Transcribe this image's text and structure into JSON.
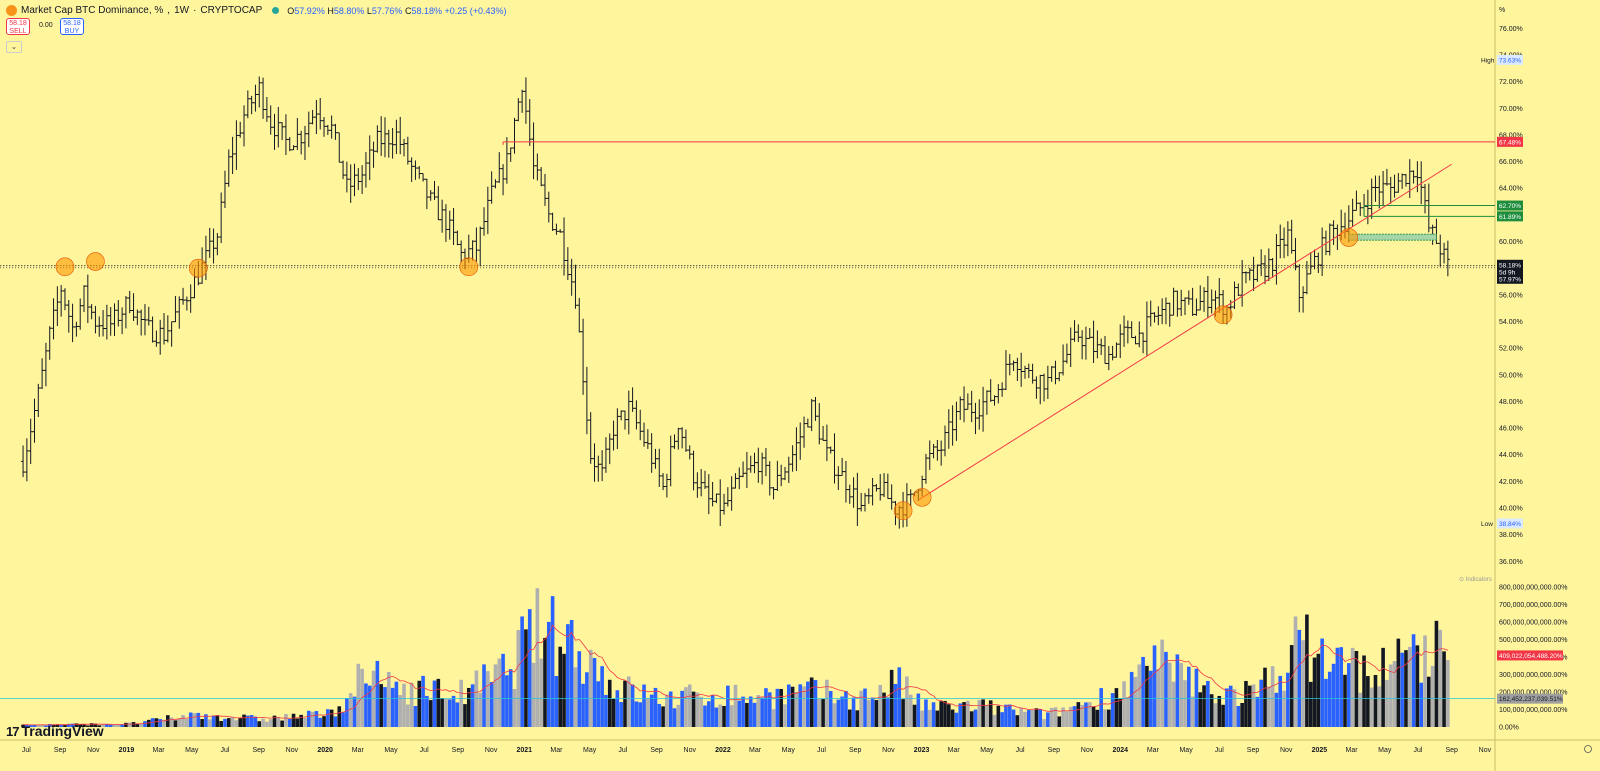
{
  "header": {
    "title": "Market Cap BTC Dominance, %",
    "interval": "1W",
    "exchange": "CRYPTOCAP",
    "ohlc": {
      "o_label": "O",
      "o_value": "57.92%",
      "h_label": "H",
      "h_value": "58.80%",
      "l_label": "L",
      "l_value": "57.76%",
      "c_label": "C",
      "c_value": "58.18%",
      "change": "+0.25 (+0.43%)"
    }
  },
  "trade": {
    "sell_price": "58.18",
    "sell_label": "SELL",
    "spread": "0.00",
    "buy_price": "58.18",
    "buy_label": "BUY"
  },
  "collapse_icon": "chevron-down-icon",
  "logo": {
    "text": "TradingView",
    "mark": "17"
  },
  "price_axis": {
    "unit": "%",
    "labels": [
      "76.00%",
      "74.00%",
      "72.00%",
      "70.00%",
      "68.00%",
      "66.00%",
      "64.00%",
      "62.00%",
      "60.00%",
      "58.00%",
      "56.00%",
      "54.00%",
      "52.00%",
      "50.00%",
      "48.00%",
      "46.00%",
      "44.00%",
      "42.00%",
      "40.00%",
      "38.00%",
      "36.00%"
    ]
  },
  "volume_axis": {
    "labels": [
      "800,000,000,000.00%",
      "700,000,000,000.00%",
      "600,000,000,000.00%",
      "500,000,000,000.00%",
      "400,000,000,000.00%",
      "300,000,000,000.00%",
      "200,000,000,000.00%",
      "100,000,000,000.00%",
      "0.00%"
    ]
  },
  "time_axis": {
    "labels": [
      "Jul",
      "Sep",
      "Nov",
      "2019",
      "Mar",
      "May",
      "Jul",
      "Sep",
      "Nov",
      "2020",
      "Mar",
      "May",
      "Jul",
      "Sep",
      "Nov",
      "2021",
      "Mar",
      "May",
      "Jul",
      "Sep",
      "Nov",
      "2022",
      "Mar",
      "May",
      "Jul",
      "Sep",
      "Nov",
      "2023",
      "Mar",
      "May",
      "Jul",
      "Sep",
      "Nov",
      "2024",
      "Mar",
      "May",
      "Jul",
      "Sep",
      "Nov",
      "2025",
      "Mar",
      "May",
      "Jul",
      "Sep",
      "Nov"
    ]
  },
  "markers": {
    "high_label": "High",
    "high_value": "73.63%",
    "low_label": "Low",
    "low_value": "38.84%",
    "resistance_value": "67.48%",
    "fib1_value": "62.70%",
    "fib2_value": "61.89%",
    "last_price": "58.18%",
    "countdown": "5d 9h",
    "prev_close": "57.97%",
    "volume_last": "409,022,054,488.20%",
    "volume_ma": "162,452,237,039.51%",
    "watermark": "Indicators"
  },
  "colors": {
    "background": "#fff59d",
    "bar": "#131722",
    "resistance": "#f23645",
    "trendline": "#f23645",
    "support": "#131722",
    "fib": "#1e8e3e",
    "circle": "#ff9800",
    "vol_blue": "#2962ff",
    "vol_black": "#131722",
    "vol_gray": "#b0b0b0",
    "vol_ma": "#f23645",
    "vol_hline": "#26c6da"
  },
  "chart_data": {
    "type": "ohlc",
    "ylim": [
      35.5,
      77
    ],
    "weekly_close_anchors": [
      {
        "date": "2018-06-25",
        "value": 43.5
      },
      {
        "date": "2018-07-23",
        "value": 48.5
      },
      {
        "date": "2018-08-13",
        "value": 53.0
      },
      {
        "date": "2018-09-03",
        "value": 56.5
      },
      {
        "date": "2018-09-24",
        "value": 53.5
      },
      {
        "date": "2018-10-15",
        "value": 56.0
      },
      {
        "date": "2018-11-05",
        "value": 54.0
      },
      {
        "date": "2018-12-03",
        "value": 53.8
      },
      {
        "date": "2019-01-07",
        "value": 55.5
      },
      {
        "date": "2019-02-04",
        "value": 53.5
      },
      {
        "date": "2019-03-11",
        "value": 53.0
      },
      {
        "date": "2019-04-08",
        "value": 55.0
      },
      {
        "date": "2019-05-13",
        "value": 57.5
      },
      {
        "date": "2019-06-17",
        "value": 60.5
      },
      {
        "date": "2019-07-08",
        "value": 66.0
      },
      {
        "date": "2019-08-05",
        "value": 69.5
      },
      {
        "date": "2019-09-02",
        "value": 71.5
      },
      {
        "date": "2019-09-23",
        "value": 69.0
      },
      {
        "date": "2019-10-21",
        "value": 67.5
      },
      {
        "date": "2019-11-18",
        "value": 68.0
      },
      {
        "date": "2019-12-16",
        "value": 70.0
      },
      {
        "date": "2020-01-13",
        "value": 68.5
      },
      {
        "date": "2020-02-10",
        "value": 64.0
      },
      {
        "date": "2020-03-09",
        "value": 65.0
      },
      {
        "date": "2020-04-06",
        "value": 67.5
      },
      {
        "date": "2020-05-11",
        "value": 68.0
      },
      {
        "date": "2020-06-08",
        "value": 65.5
      },
      {
        "date": "2020-07-13",
        "value": 63.0
      },
      {
        "date": "2020-08-10",
        "value": 61.5
      },
      {
        "date": "2020-09-07",
        "value": 59.0
      },
      {
        "date": "2020-10-05",
        "value": 59.5
      },
      {
        "date": "2020-11-02",
        "value": 63.5
      },
      {
        "date": "2020-11-30",
        "value": 66.0
      },
      {
        "date": "2020-12-28",
        "value": 72.0
      },
      {
        "date": "2021-01-18",
        "value": 65.5
      },
      {
        "date": "2021-02-15",
        "value": 62.0
      },
      {
        "date": "2021-03-08",
        "value": 60.5
      },
      {
        "date": "2021-04-05",
        "value": 56.0
      },
      {
        "date": "2021-05-03",
        "value": 44.0
      },
      {
        "date": "2021-05-24",
        "value": 42.5
      },
      {
        "date": "2021-06-14",
        "value": 46.0
      },
      {
        "date": "2021-07-12",
        "value": 47.5
      },
      {
        "date": "2021-08-16",
        "value": 44.5
      },
      {
        "date": "2021-09-13",
        "value": 41.5
      },
      {
        "date": "2021-10-11",
        "value": 46.5
      },
      {
        "date": "2021-11-08",
        "value": 42.5
      },
      {
        "date": "2021-12-06",
        "value": 40.5
      },
      {
        "date": "2022-01-03",
        "value": 40.0
      },
      {
        "date": "2022-01-31",
        "value": 42.0
      },
      {
        "date": "2022-03-07",
        "value": 43.5
      },
      {
        "date": "2022-04-04",
        "value": 41.5
      },
      {
        "date": "2022-05-09",
        "value": 44.0
      },
      {
        "date": "2022-06-13",
        "value": 47.5
      },
      {
        "date": "2022-07-11",
        "value": 44.0
      },
      {
        "date": "2022-08-15",
        "value": 42.0
      },
      {
        "date": "2022-09-12",
        "value": 40.0
      },
      {
        "date": "2022-10-17",
        "value": 41.5
      },
      {
        "date": "2022-11-14",
        "value": 40.0
      },
      {
        "date": "2022-12-12",
        "value": 40.5
      },
      {
        "date": "2023-01-09",
        "value": 43.5
      },
      {
        "date": "2023-02-06",
        "value": 44.5
      },
      {
        "date": "2023-03-13",
        "value": 47.5
      },
      {
        "date": "2023-04-10",
        "value": 47.5
      },
      {
        "date": "2023-05-15",
        "value": 48.5
      },
      {
        "date": "2023-06-19",
        "value": 51.5
      },
      {
        "date": "2023-07-17",
        "value": 50.0
      },
      {
        "date": "2023-08-21",
        "value": 49.5
      },
      {
        "date": "2023-09-18",
        "value": 51.0
      },
      {
        "date": "2023-10-16",
        "value": 53.0
      },
      {
        "date": "2023-11-13",
        "value": 52.0
      },
      {
        "date": "2023-12-11",
        "value": 51.5
      },
      {
        "date": "2024-01-08",
        "value": 53.0
      },
      {
        "date": "2024-02-05",
        "value": 53.0
      },
      {
        "date": "2024-03-11",
        "value": 54.5
      },
      {
        "date": "2024-04-08",
        "value": 55.5
      },
      {
        "date": "2024-05-13",
        "value": 55.0
      },
      {
        "date": "2024-06-17",
        "value": 56.0
      },
      {
        "date": "2024-07-15",
        "value": 55.0
      },
      {
        "date": "2024-08-12",
        "value": 57.0
      },
      {
        "date": "2024-09-09",
        "value": 57.5
      },
      {
        "date": "2024-10-07",
        "value": 58.5
      },
      {
        "date": "2024-11-04",
        "value": 60.5
      },
      {
        "date": "2024-11-25",
        "value": 56.0
      },
      {
        "date": "2024-12-23",
        "value": 58.5
      },
      {
        "date": "2025-01-20",
        "value": 60.5
      },
      {
        "date": "2025-02-17",
        "value": 61.5
      },
      {
        "date": "2025-03-17",
        "value": 62.5
      },
      {
        "date": "2025-04-14",
        "value": 64.0
      },
      {
        "date": "2025-05-12",
        "value": 64.0
      },
      {
        "date": "2025-06-09",
        "value": 65.0
      },
      {
        "date": "2025-06-30",
        "value": 65.5
      },
      {
        "date": "2025-07-21",
        "value": 61.0
      },
      {
        "date": "2025-08-11",
        "value": 59.5
      },
      {
        "date": "2025-08-25",
        "value": 58.18
      }
    ],
    "volume_anchors": [
      {
        "date": "2018-06-25",
        "value": 12
      },
      {
        "date": "2019-01-07",
        "value": 18
      },
      {
        "date": "2019-05-13",
        "value": 70
      },
      {
        "date": "2019-09-02",
        "value": 45
      },
      {
        "date": "2020-01-13",
        "value": 75
      },
      {
        "date": "2020-03-09",
        "value": 280
      },
      {
        "date": "2020-06-08",
        "value": 220
      },
      {
        "date": "2020-09-07",
        "value": 190
      },
      {
        "date": "2020-11-30",
        "value": 320
      },
      {
        "date": "2021-01-18",
        "value": 560
      },
      {
        "date": "2021-04-05",
        "value": 480
      },
      {
        "date": "2021-06-14",
        "value": 230
      },
      {
        "date": "2021-09-13",
        "value": 160
      },
      {
        "date": "2021-12-06",
        "value": 180
      },
      {
        "date": "2022-03-07",
        "value": 175
      },
      {
        "date": "2022-06-13",
        "value": 200
      },
      {
        "date": "2022-09-12",
        "value": 160
      },
      {
        "date": "2022-11-14",
        "value": 260
      },
      {
        "date": "2023-01-09",
        "value": 110
      },
      {
        "date": "2023-04-10",
        "value": 120
      },
      {
        "date": "2023-08-21",
        "value": 70
      },
      {
        "date": "2023-12-11",
        "value": 180
      },
      {
        "date": "2024-03-11",
        "value": 360
      },
      {
        "date": "2024-06-17",
        "value": 200
      },
      {
        "date": "2024-09-09",
        "value": 190
      },
      {
        "date": "2024-11-25",
        "value": 480
      },
      {
        "date": "2025-01-20",
        "value": 380
      },
      {
        "date": "2025-04-14",
        "value": 310
      },
      {
        "date": "2025-07-21",
        "value": 460
      },
      {
        "date": "2025-08-25",
        "value": 409
      }
    ],
    "volume_unit": "billion",
    "volume_ylim": [
      0,
      840
    ],
    "horizontal_levels": {
      "resistance": 67.48,
      "support": 58.18,
      "fib_upper": 62.7,
      "fib_lower": 61.89
    },
    "trendline": [
      {
        "date": "2022-12-26",
        "value": 40.6
      },
      {
        "date": "2025-09-01",
        "value": 65.8
      }
    ],
    "circles": [
      {
        "date": "2018-09-10",
        "value": 58.1
      },
      {
        "date": "2018-11-05",
        "value": 58.5
      },
      {
        "date": "2019-05-13",
        "value": 58.0
      },
      {
        "date": "2020-09-21",
        "value": 58.1
      },
      {
        "date": "2022-11-28",
        "value": 39.8
      },
      {
        "date": "2023-01-02",
        "value": 40.8
      },
      {
        "date": "2024-07-08",
        "value": 54.5
      },
      {
        "date": "2025-02-24",
        "value": 60.3
      }
    ]
  }
}
